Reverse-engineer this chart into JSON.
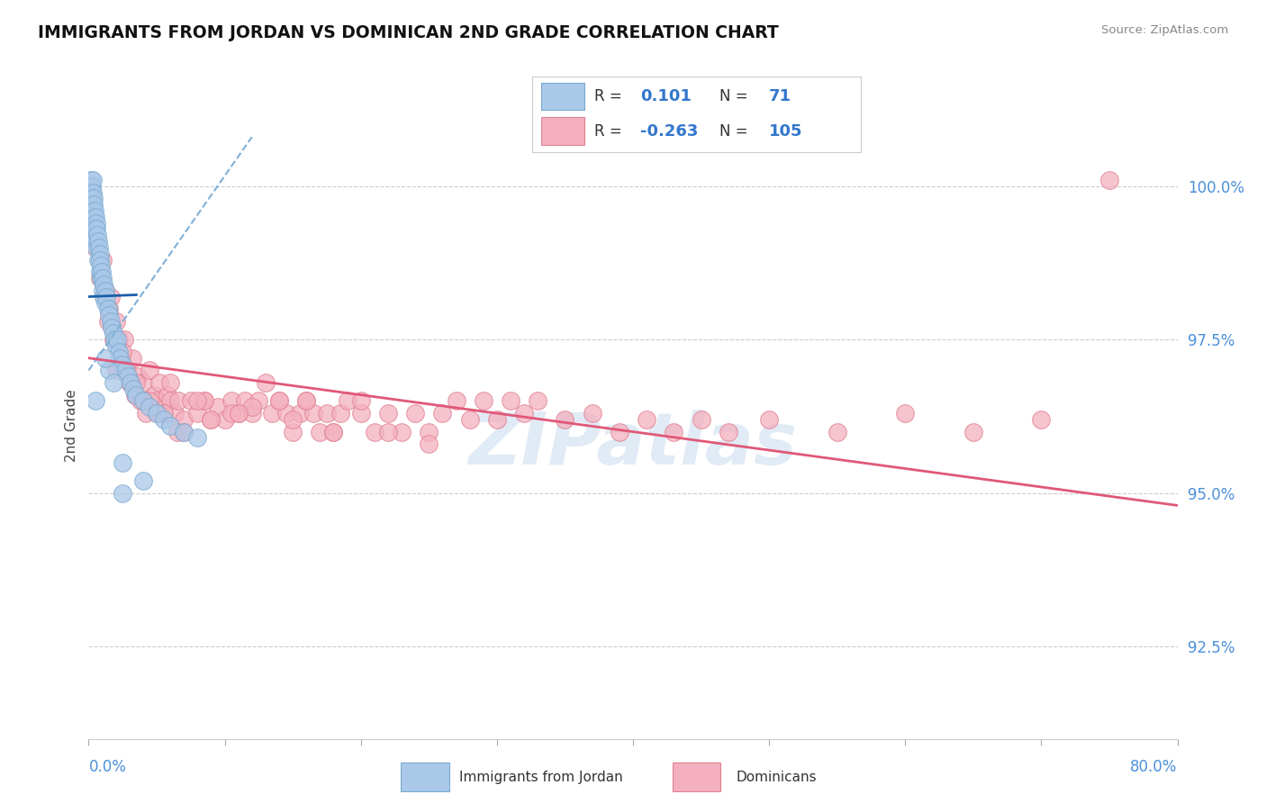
{
  "title": "IMMIGRANTS FROM JORDAN VS DOMINICAN 2ND GRADE CORRELATION CHART",
  "source": "Source: ZipAtlas.com",
  "ylabel": "2nd Grade",
  "yticks": [
    92.5,
    95.0,
    97.5,
    100.0
  ],
  "ytick_labels": [
    "92.5%",
    "95.0%",
    "97.5%",
    "100.0%"
  ],
  "xmin": 0.0,
  "xmax": 80.0,
  "ymin": 91.0,
  "ymax": 101.2,
  "jordan_color": "#aac8e8",
  "jordan_edge": "#7aaad0",
  "dominican_color": "#f4b0c0",
  "dominican_edge": "#e08090",
  "jordan_R": 0.101,
  "jordan_N": 71,
  "dominican_R": -0.263,
  "dominican_N": 105,
  "trend_blue_solid": "#1a5fa8",
  "trend_blue_dashed": "#80b0d8",
  "trend_pink": "#e05878",
  "watermark": "ZIPatlas",
  "jordan_points_x": [
    0.1,
    0.1,
    0.15,
    0.15,
    0.2,
    0.2,
    0.2,
    0.25,
    0.25,
    0.3,
    0.3,
    0.3,
    0.35,
    0.35,
    0.4,
    0.4,
    0.4,
    0.45,
    0.5,
    0.5,
    0.5,
    0.55,
    0.6,
    0.6,
    0.65,
    0.7,
    0.7,
    0.75,
    0.8,
    0.8,
    0.85,
    0.9,
    0.9,
    0.95,
    1.0,
    1.0,
    1.1,
    1.1,
    1.2,
    1.2,
    1.3,
    1.4,
    1.5,
    1.6,
    1.7,
    1.8,
    1.9,
    2.0,
    2.1,
    2.2,
    2.3,
    2.5,
    2.7,
    2.9,
    3.1,
    3.3,
    3.5,
    4.0,
    4.5,
    5.0,
    5.5,
    6.0,
    7.0,
    8.0,
    1.5,
    0.5,
    2.5,
    2.5,
    4.0,
    1.2,
    1.8
  ],
  "jordan_points_y": [
    100.0,
    99.8,
    100.1,
    99.9,
    100.0,
    99.7,
    99.5,
    100.0,
    99.8,
    100.1,
    99.9,
    99.6,
    99.8,
    99.5,
    99.7,
    99.4,
    99.2,
    99.6,
    99.5,
    99.3,
    99.1,
    99.4,
    99.3,
    99.0,
    99.2,
    99.1,
    98.8,
    99.0,
    98.9,
    98.6,
    98.8,
    98.7,
    98.5,
    98.6,
    98.5,
    98.3,
    98.4,
    98.2,
    98.3,
    98.1,
    98.2,
    98.0,
    97.9,
    97.8,
    97.7,
    97.6,
    97.5,
    97.4,
    97.5,
    97.3,
    97.2,
    97.1,
    97.0,
    96.9,
    96.8,
    96.7,
    96.6,
    96.5,
    96.4,
    96.3,
    96.2,
    96.1,
    96.0,
    95.9,
    97.0,
    96.5,
    95.5,
    95.0,
    95.2,
    97.2,
    96.8
  ],
  "dominican_points_x": [
    0.5,
    0.8,
    1.0,
    1.2,
    1.4,
    1.6,
    1.8,
    2.0,
    2.2,
    2.4,
    2.6,
    2.8,
    3.0,
    3.2,
    3.4,
    3.6,
    3.8,
    4.0,
    4.2,
    4.5,
    4.8,
    5.0,
    5.2,
    5.5,
    5.8,
    6.0,
    6.3,
    6.6,
    7.0,
    7.5,
    8.0,
    8.5,
    9.0,
    9.5,
    10.0,
    10.5,
    11.0,
    11.5,
    12.0,
    12.5,
    13.0,
    13.5,
    14.0,
    14.5,
    15.0,
    15.5,
    16.0,
    16.5,
    17.0,
    17.5,
    18.0,
    18.5,
    19.0,
    20.0,
    21.0,
    22.0,
    23.0,
    24.0,
    25.0,
    26.0,
    27.0,
    28.0,
    29.0,
    30.0,
    31.0,
    32.0,
    33.0,
    35.0,
    37.0,
    39.0,
    41.0,
    43.0,
    45.0,
    47.0,
    50.0,
    55.0,
    60.0,
    65.0,
    70.0,
    75.0,
    1.5,
    2.5,
    3.5,
    4.5,
    5.5,
    6.5,
    8.5,
    10.5,
    14.0,
    18.0,
    2.0,
    3.0,
    4.0,
    5.0,
    7.0,
    9.0,
    12.0,
    15.0,
    20.0,
    25.0,
    6.0,
    8.0,
    11.0,
    16.0,
    22.0
  ],
  "dominican_points_y": [
    99.0,
    98.5,
    98.8,
    98.3,
    97.8,
    98.2,
    97.5,
    97.8,
    97.5,
    97.2,
    97.5,
    97.0,
    96.8,
    97.2,
    96.6,
    96.9,
    96.5,
    96.8,
    96.3,
    97.0,
    96.6,
    96.5,
    96.8,
    96.3,
    96.6,
    96.5,
    96.3,
    96.5,
    96.2,
    96.5,
    96.3,
    96.5,
    96.2,
    96.4,
    96.2,
    96.5,
    96.3,
    96.5,
    96.3,
    96.5,
    96.8,
    96.3,
    96.5,
    96.3,
    96.0,
    96.3,
    96.5,
    96.3,
    96.0,
    96.3,
    96.0,
    96.3,
    96.5,
    96.3,
    96.0,
    96.3,
    96.0,
    96.3,
    96.0,
    96.3,
    96.5,
    96.2,
    96.5,
    96.2,
    96.5,
    96.3,
    96.5,
    96.2,
    96.3,
    96.0,
    96.2,
    96.0,
    96.2,
    96.0,
    96.2,
    96.0,
    96.3,
    96.0,
    96.2,
    100.1,
    98.0,
    97.3,
    96.8,
    96.5,
    96.3,
    96.0,
    96.5,
    96.3,
    96.5,
    96.0,
    97.0,
    96.8,
    96.5,
    96.3,
    96.0,
    96.2,
    96.4,
    96.2,
    96.5,
    95.8,
    96.8,
    96.5,
    96.3,
    96.5,
    96.0
  ],
  "jordan_trend_x0": 0.0,
  "jordan_trend_x1": 12.0,
  "jordan_trend_y0": 98.2,
  "jordan_trend_y1": 99.2,
  "jordan_dash_y0": 97.0,
  "jordan_dash_y1": 100.8,
  "dominican_trend_x0": 0.0,
  "dominican_trend_x1": 80.0,
  "dominican_trend_y0": 97.2,
  "dominican_trend_y1": 94.8
}
